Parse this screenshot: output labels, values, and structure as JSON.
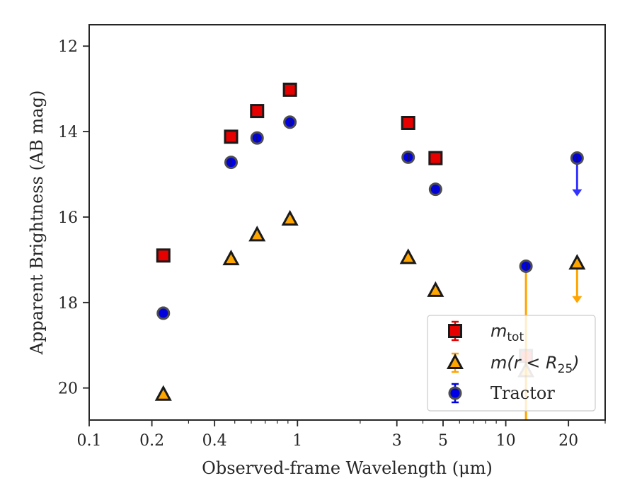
{
  "chart_data": {
    "type": "scatter",
    "xlabel": "Observed-frame Wavelength (μm)",
    "ylabel": "Apparent Brightness (AB mag)",
    "xscale": "log",
    "xlim": [
      0.1,
      30
    ],
    "ylim": [
      20.75,
      11.5
    ],
    "y_inverted": true,
    "x_ticks": [
      {
        "value": 0.1,
        "label": "0.1"
      },
      {
        "value": 0.2,
        "label": "0.2"
      },
      {
        "value": 0.4,
        "label": "0.4"
      },
      {
        "value": 1,
        "label": "1"
      },
      {
        "value": 3,
        "label": "3"
      },
      {
        "value": 5,
        "label": "5"
      },
      {
        "value": 10,
        "label": "10"
      },
      {
        "value": 20,
        "label": "20"
      }
    ],
    "y_ticks": [
      {
        "value": 12,
        "label": "12"
      },
      {
        "value": 14,
        "label": "14"
      },
      {
        "value": 16,
        "label": "16"
      },
      {
        "value": 18,
        "label": "18"
      },
      {
        "value": 20,
        "label": "20"
      }
    ],
    "legend_position": "lower-right",
    "series": [
      {
        "key": "mtot",
        "legend_main": "m",
        "legend_sub": "tot",
        "marker": "square",
        "color": "#e60000",
        "edge_color": "#1a1a1a",
        "points": [
          {
            "x": 0.227,
            "y": 16.9
          },
          {
            "x": 0.48,
            "y": 14.12
          },
          {
            "x": 0.64,
            "y": 13.52
          },
          {
            "x": 0.92,
            "y": 13.02
          },
          {
            "x": 3.4,
            "y": 13.8
          },
          {
            "x": 4.6,
            "y": 14.62
          },
          {
            "x": 12.5,
            "y": 19.25,
            "faded": true
          }
        ]
      },
      {
        "key": "mr25",
        "legend_main": "m(r < R",
        "legend_sub": "25",
        "legend_close": ")",
        "marker": "triangle",
        "color": "#ffa500",
        "edge_color": "#1a1a1a",
        "points": [
          {
            "x": 0.227,
            "y": 20.15
          },
          {
            "x": 0.48,
            "y": 16.98
          },
          {
            "x": 0.64,
            "y": 16.42
          },
          {
            "x": 0.92,
            "y": 16.05
          },
          {
            "x": 3.4,
            "y": 16.95
          },
          {
            "x": 4.6,
            "y": 17.72
          },
          {
            "x": 12.5,
            "y": 19.6,
            "faded": true
          },
          {
            "x": 22.0,
            "y": 17.08,
            "upper_limit_to": 18.0
          }
        ]
      },
      {
        "key": "tractor",
        "legend_main": "Tractor",
        "marker": "circle",
        "color": "#0000e6",
        "edge_color": "#4d4d4d",
        "points": [
          {
            "x": 0.227,
            "y": 18.25
          },
          {
            "x": 0.48,
            "y": 14.72
          },
          {
            "x": 0.64,
            "y": 14.15
          },
          {
            "x": 0.92,
            "y": 13.78
          },
          {
            "x": 3.4,
            "y": 14.6
          },
          {
            "x": 4.6,
            "y": 15.35
          },
          {
            "x": 12.5,
            "y": 17.15,
            "errbar_to": 20.75,
            "errbar_color": "#ffa500"
          },
          {
            "x": 22.0,
            "y": 14.62,
            "upper_limit_to": 15.5
          }
        ]
      }
    ]
  }
}
